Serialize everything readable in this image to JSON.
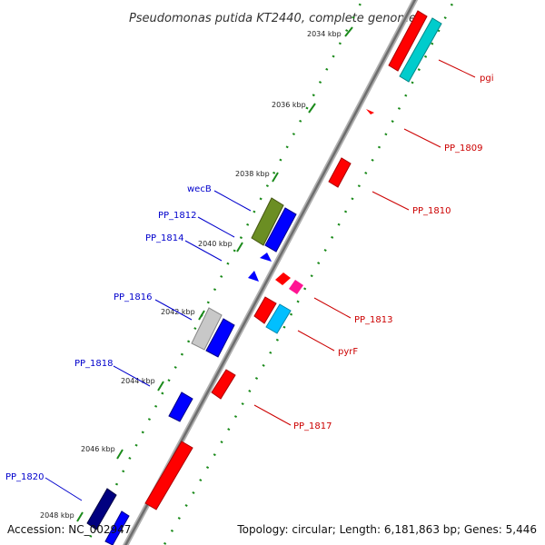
{
  "title": "Pseudomonas putida KT2440, complete genome",
  "footer": {
    "accession": "Accession: NC_002947",
    "topology": "Topology: circular; Length: 6,181,863 bp; Genes: 5,446"
  },
  "colors": {
    "backbone": "#8a8a8a",
    "tick_dots": "#1a8a1a",
    "label_red": "#cc0000",
    "label_blue": "#0000cc"
  },
  "ticks": [
    {
      "label": "2034 kbp"
    },
    {
      "label": "2036 kbp"
    },
    {
      "label": "2038 kbp"
    },
    {
      "label": "2040 kbp"
    },
    {
      "label": "2042 kbp"
    },
    {
      "label": "2044 kbp"
    },
    {
      "label": "2046 kbp"
    },
    {
      "label": "2048 kbp"
    }
  ],
  "labels_right": [
    {
      "name": "pgi"
    },
    {
      "name": "PP_1809"
    },
    {
      "name": "PP_1810"
    },
    {
      "name": "PP_1813"
    },
    {
      "name": "pyrF"
    },
    {
      "name": "PP_1817"
    }
  ],
  "labels_left": [
    {
      "name": "wecB"
    },
    {
      "name": "PP_1812"
    },
    {
      "name": "PP_1814"
    },
    {
      "name": "PP_1816"
    },
    {
      "name": "PP_1818"
    },
    {
      "name": "PP_1820"
    }
  ],
  "genes": [
    {
      "id": "pgi",
      "color": "#ff0000"
    },
    {
      "id": "pgi-cyan",
      "color": "#00cccc"
    },
    {
      "id": "PP_1809",
      "color": "#ff0000"
    },
    {
      "id": "PP_1810",
      "color": "#ff0000"
    },
    {
      "id": "wecB",
      "color": "#6b8e23"
    },
    {
      "id": "PP_1812",
      "color": "#0000ff"
    },
    {
      "id": "PP_1813",
      "color": "#ff0000"
    },
    {
      "id": "PP_1813-magenta",
      "color": "#ff1493"
    },
    {
      "id": "PP_1814",
      "color": "#0000ff"
    },
    {
      "id": "PP_1815",
      "color": "#ff0000"
    },
    {
      "id": "pyrF",
      "color": "#00bfff"
    },
    {
      "id": "PP_1816-grey",
      "color": "#c0c0c0"
    },
    {
      "id": "PP_1816",
      "color": "#0000ff"
    },
    {
      "id": "PP_1817",
      "color": "#ff0000"
    },
    {
      "id": "PP_1818",
      "color": "#0000ff"
    },
    {
      "id": "PP_1819",
      "color": "#ff0000"
    },
    {
      "id": "PP_1820",
      "color": "#000080"
    },
    {
      "id": "PP_1820b",
      "color": "#0000ff"
    }
  ]
}
